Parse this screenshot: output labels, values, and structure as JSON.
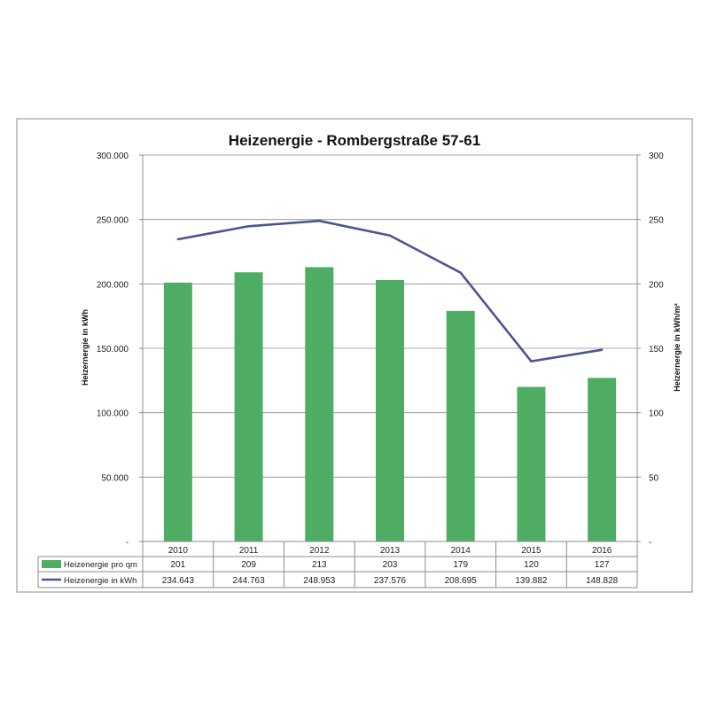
{
  "chart_data": {
    "type": "bar",
    "title": "Heizenergie - Rombergstraße 57-61",
    "categories": [
      "2010",
      "2011",
      "2012",
      "2013",
      "2014",
      "2015",
      "2016"
    ],
    "series": [
      {
        "name": "Heizenergie pro qm",
        "type": "bar",
        "axis": "right",
        "color": "#4ead62",
        "values": [
          201,
          209,
          213,
          203,
          179,
          120,
          127
        ],
        "labels": [
          "201",
          "209",
          "213",
          "203",
          "179",
          "120",
          "127"
        ]
      },
      {
        "name": "Heizenergie in kWh",
        "type": "line",
        "axis": "left",
        "color": "#4d5591",
        "values": [
          234643,
          244763,
          248953,
          237576,
          208695,
          139882,
          148828
        ],
        "labels": [
          "234.643",
          "244.763",
          "248.953",
          "237.576",
          "208.695",
          "139.882",
          "148.828"
        ]
      }
    ],
    "y_left": {
      "label": "Heizernergie in kWh",
      "range": [
        0,
        300000
      ],
      "ticks": [
        0,
        50000,
        100000,
        150000,
        200000,
        250000,
        300000
      ],
      "tick_labels": [
        "-",
        "50.000",
        "100.000",
        "150.000",
        "200.000",
        "250.000",
        "300.000"
      ]
    },
    "y_right": {
      "label": "Heizernergie in kWh/m²",
      "range": [
        0,
        300
      ],
      "ticks": [
        0,
        50,
        100,
        150,
        200,
        250,
        300
      ],
      "tick_labels": [
        "-",
        "50",
        "100",
        "150",
        "200",
        "250",
        "300"
      ]
    },
    "grid": true,
    "legend": "data-table"
  }
}
